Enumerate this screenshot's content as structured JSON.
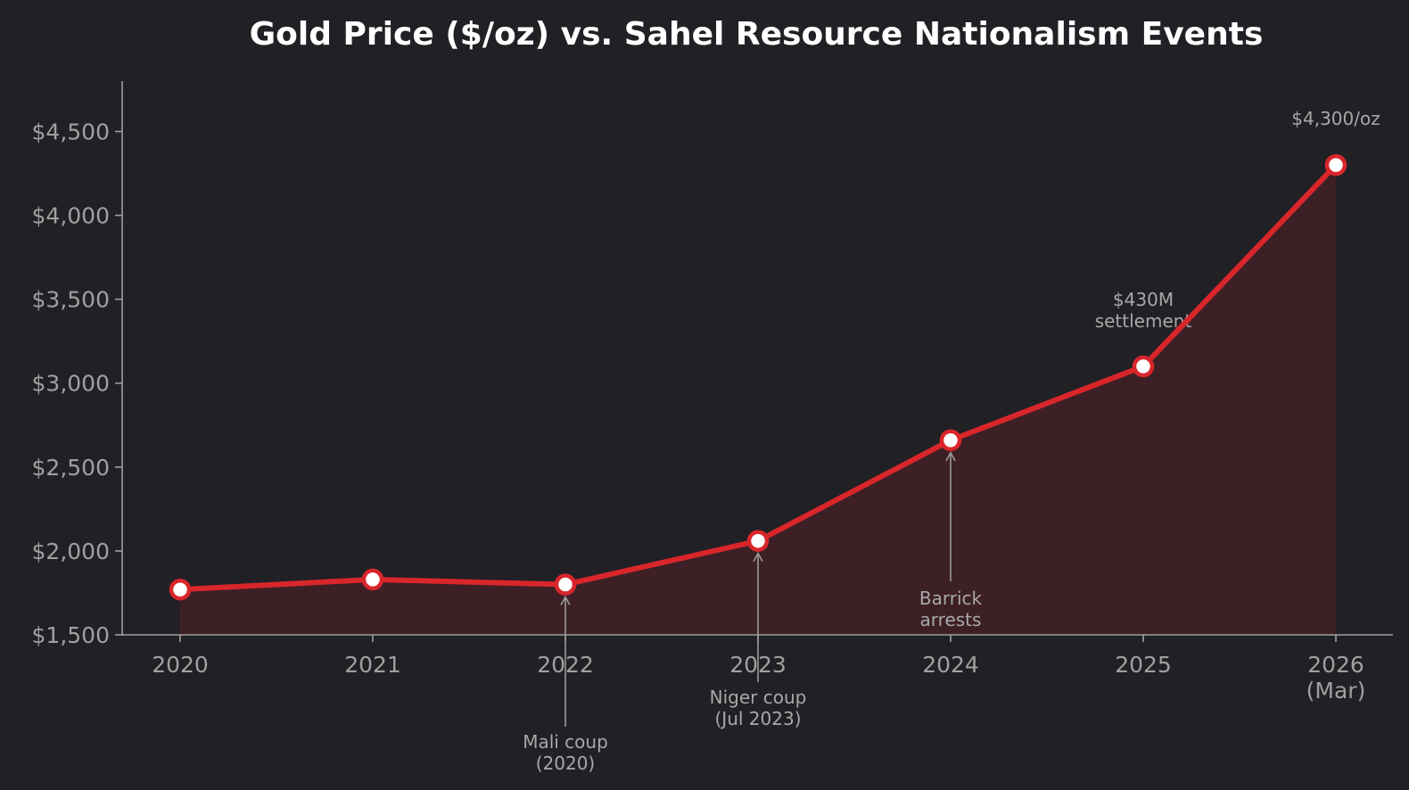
{
  "chart_data": {
    "type": "line",
    "title": "Gold Price ($/oz) vs. Sahel Resource Nationalism Events",
    "xlabel": "",
    "ylabel": "",
    "categories": [
      "2020",
      "2021",
      "2022",
      "2023",
      "2024",
      "2025",
      "2026\n(Mar)"
    ],
    "series": [
      {
        "values": [
          1770,
          1830,
          1800,
          2060,
          2660,
          3100,
          4300
        ]
      }
    ],
    "ylim": [
      1500,
      4800
    ],
    "yticks": [
      1500,
      2000,
      2500,
      3000,
      3500,
      4000,
      4500
    ],
    "ytick_labels": [
      "$1,500",
      "$2,000",
      "$2,500",
      "$3,000",
      "$3,500",
      "$4,000",
      "$4,500"
    ],
    "line_color": "#d9262b",
    "fill_color": "#3d2026",
    "marker_fill": "#ffffff",
    "background": "#212025",
    "grid": false,
    "annotations": [
      {
        "index": 2,
        "text": "Mali coup\n(2020)",
        "arrow": true,
        "position": "below-axis"
      },
      {
        "index": 3,
        "text": "Niger coup\n(Jul 2023)",
        "arrow": true,
        "position": "below-axis"
      },
      {
        "index": 4,
        "text": "Barrick\narrests",
        "arrow": true,
        "position": "inside-below"
      },
      {
        "index": 5,
        "text": "$430M\nsettlement",
        "arrow": false,
        "position": "above"
      },
      {
        "index": 6,
        "text": "$4,300/oz",
        "arrow": false,
        "position": "above"
      }
    ]
  }
}
